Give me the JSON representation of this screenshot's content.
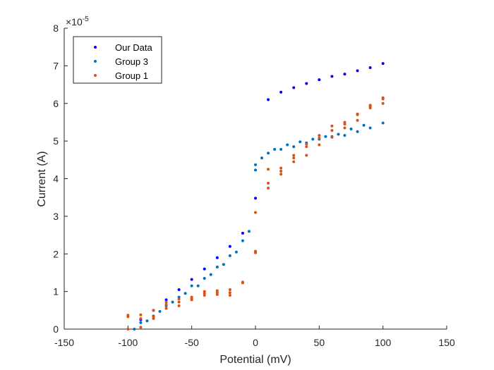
{
  "chart_data": {
    "type": "scatter",
    "xlabel": "Potential (mV)",
    "ylabel": "Current (A)",
    "y_exponent_label": "×10",
    "y_exponent_power": "-5",
    "xlim": [
      -150,
      150
    ],
    "ylim": [
      0,
      8
    ],
    "x_ticks": [
      -150,
      -100,
      -50,
      0,
      50,
      100,
      150
    ],
    "y_ticks": [
      0,
      1,
      2,
      3,
      4,
      5,
      6,
      7,
      8
    ],
    "x_tick_labels": [
      "-150",
      "-100",
      "-50",
      "0",
      "50",
      "100",
      "150"
    ],
    "y_tick_labels": [
      "0",
      "1",
      "2",
      "3",
      "4",
      "5",
      "6",
      "7",
      "8"
    ],
    "grid": false,
    "legend_position": "top-left",
    "series": [
      {
        "name": "Our Data",
        "color": "#0000ff",
        "points": [
          [
            -90,
            0.25
          ],
          [
            -80,
            0.5
          ],
          [
            -70,
            0.78
          ],
          [
            -60,
            1.05
          ],
          [
            -50,
            1.32
          ],
          [
            -40,
            1.6
          ],
          [
            -30,
            1.9
          ],
          [
            -20,
            2.2
          ],
          [
            -10,
            2.55
          ],
          [
            0,
            3.48
          ],
          [
            10,
            6.1
          ],
          [
            20,
            6.3
          ],
          [
            30,
            6.42
          ],
          [
            40,
            6.53
          ],
          [
            50,
            6.63
          ],
          [
            60,
            6.72
          ],
          [
            70,
            6.78
          ],
          [
            80,
            6.87
          ],
          [
            90,
            6.95
          ],
          [
            100,
            7.06
          ]
        ]
      },
      {
        "name": "Group 3",
        "color": "#0072bd",
        "points": [
          [
            -95,
            0.0
          ],
          [
            -90,
            0.17
          ],
          [
            -85,
            0.22
          ],
          [
            -80,
            0.35
          ],
          [
            -75,
            0.47
          ],
          [
            -70,
            0.62
          ],
          [
            -65,
            0.72
          ],
          [
            -60,
            0.85
          ],
          [
            -55,
            0.95
          ],
          [
            -50,
            1.15
          ],
          [
            -45,
            1.15
          ],
          [
            -40,
            1.35
          ],
          [
            -35,
            1.45
          ],
          [
            -30,
            1.65
          ],
          [
            -25,
            1.72
          ],
          [
            -20,
            1.95
          ],
          [
            -15,
            2.05
          ],
          [
            -10,
            2.35
          ],
          [
            -5,
            2.6
          ],
          [
            0,
            4.23
          ],
          [
            0,
            4.37
          ],
          [
            5,
            4.55
          ],
          [
            10,
            4.68
          ],
          [
            15,
            4.78
          ],
          [
            20,
            4.78
          ],
          [
            25,
            4.9
          ],
          [
            30,
            4.85
          ],
          [
            35,
            4.98
          ],
          [
            40,
            4.95
          ],
          [
            45,
            5.05
          ],
          [
            50,
            5.05
          ],
          [
            55,
            5.12
          ],
          [
            60,
            5.12
          ],
          [
            65,
            5.18
          ],
          [
            70,
            5.15
          ],
          [
            75,
            5.32
          ],
          [
            80,
            5.25
          ],
          [
            85,
            5.42
          ],
          [
            90,
            5.35
          ],
          [
            100,
            5.48
          ]
        ]
      },
      {
        "name": "Group 1",
        "color": "#d95319",
        "points": [
          [
            -100,
            0.0
          ],
          [
            -100,
            0.33
          ],
          [
            -100,
            0.37
          ],
          [
            -90,
            0.05
          ],
          [
            -90,
            0.28
          ],
          [
            -90,
            0.38
          ],
          [
            -80,
            0.28
          ],
          [
            -80,
            0.33
          ],
          [
            -80,
            0.5
          ],
          [
            -70,
            0.55
          ],
          [
            -70,
            0.65
          ],
          [
            -70,
            0.72
          ],
          [
            -60,
            0.62
          ],
          [
            -60,
            0.72
          ],
          [
            -60,
            0.8
          ],
          [
            -50,
            0.78
          ],
          [
            -50,
            0.82
          ],
          [
            -50,
            0.85
          ],
          [
            -40,
            0.9
          ],
          [
            -40,
            0.95
          ],
          [
            -40,
            1.0
          ],
          [
            -30,
            0.92
          ],
          [
            -30,
            0.97
          ],
          [
            -30,
            1.02
          ],
          [
            -20,
            0.9
          ],
          [
            -20,
            0.97
          ],
          [
            -20,
            1.05
          ],
          [
            -10,
            1.23
          ],
          [
            -10,
            1.25
          ],
          [
            0,
            2.03
          ],
          [
            0,
            2.07
          ],
          [
            0,
            3.1
          ],
          [
            10,
            3.75
          ],
          [
            10,
            3.88
          ],
          [
            10,
            4.25
          ],
          [
            20,
            4.12
          ],
          [
            20,
            4.2
          ],
          [
            20,
            4.28
          ],
          [
            30,
            4.45
          ],
          [
            30,
            4.55
          ],
          [
            30,
            4.62
          ],
          [
            40,
            4.62
          ],
          [
            40,
            4.85
          ],
          [
            40,
            4.92
          ],
          [
            50,
            4.9
          ],
          [
            50,
            5.08
          ],
          [
            50,
            5.15
          ],
          [
            60,
            5.1
          ],
          [
            60,
            5.28
          ],
          [
            60,
            5.4
          ],
          [
            70,
            5.35
          ],
          [
            70,
            5.45
          ],
          [
            70,
            5.5
          ],
          [
            80,
            5.55
          ],
          [
            80,
            5.7
          ],
          [
            80,
            5.72
          ],
          [
            90,
            5.88
          ],
          [
            90,
            5.92
          ],
          [
            90,
            5.95
          ],
          [
            100,
            6.0
          ],
          [
            100,
            6.12
          ],
          [
            100,
            6.15
          ]
        ]
      }
    ]
  }
}
